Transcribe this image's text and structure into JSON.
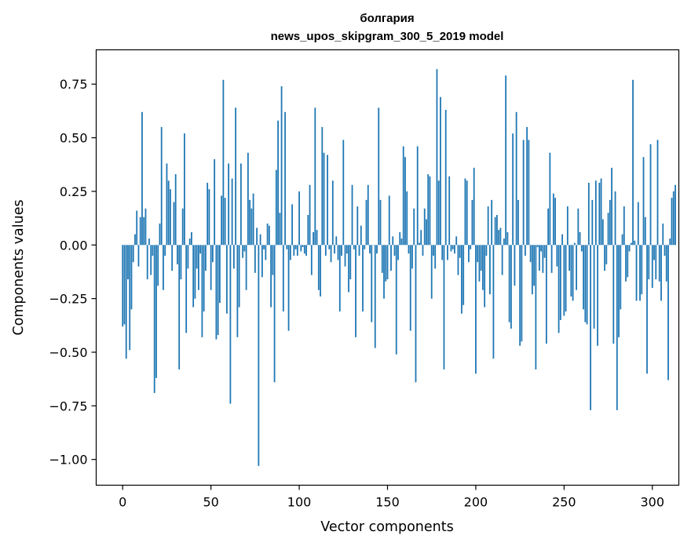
{
  "chart_data": {
    "type": "bar",
    "title": "болгария",
    "subtitle": "news_upos_skipgram_300_5_2019 model",
    "xlabel": "Vector components",
    "ylabel": "Components values",
    "xlim": [
      -15,
      315
    ],
    "ylim": [
      -1.12,
      0.91
    ],
    "xticks": [
      0,
      50,
      100,
      150,
      200,
      250,
      300
    ],
    "yticks": [
      -1.0,
      -0.75,
      -0.5,
      -0.25,
      0.0,
      0.25,
      0.5,
      0.75
    ],
    "xtick_labels": [
      "0",
      "50",
      "100",
      "150",
      "200",
      "250",
      "300"
    ],
    "ytick_labels": [
      "−1.00",
      "−0.75",
      "−0.50",
      "−0.25",
      "0.00",
      "0.25",
      "0.50",
      "0.75"
    ],
    "bar_color": "#1f77b4",
    "grid": false,
    "values": [
      -0.38,
      -0.37,
      -0.53,
      -0.16,
      -0.49,
      -0.3,
      -0.08,
      0.05,
      0.16,
      -0.1,
      0.13,
      0.62,
      0.13,
      0.17,
      -0.16,
      0.03,
      -0.14,
      -0.05,
      -0.69,
      -0.62,
      -0.19,
      0.1,
      0.55,
      -0.21,
      -0.05,
      0.38,
      0.3,
      0.26,
      -0.12,
      0.2,
      0.33,
      -0.09,
      -0.58,
      -0.16,
      0.17,
      0.52,
      -0.41,
      -0.11,
      0.03,
      0.06,
      -0.29,
      -0.25,
      -0.11,
      -0.21,
      -0.04,
      -0.43,
      -0.31,
      -0.12,
      0.29,
      0.26,
      -0.21,
      -0.08,
      0.4,
      -0.44,
      -0.42,
      -0.27,
      0.23,
      0.77,
      0.22,
      -0.32,
      0.38,
      -0.74,
      0.31,
      -0.11,
      0.64,
      -0.43,
      -0.29,
      0.38,
      -0.06,
      -0.03,
      -0.21,
      0.43,
      0.21,
      0.17,
      0.24,
      -0.13,
      0.08,
      -1.03,
      0.05,
      -0.15,
      -0.02,
      -0.07,
      0.1,
      0.09,
      -0.29,
      -0.14,
      -0.64,
      0.35,
      0.58,
      0.15,
      0.74,
      -0.31,
      0.62,
      -0.02,
      -0.4,
      -0.07,
      0.19,
      -0.05,
      -0.02,
      -0.05,
      0.25,
      -0.03,
      -0.01,
      -0.04,
      -0.05,
      0.14,
      0.28,
      -0.14,
      0.06,
      0.64,
      0.07,
      -0.21,
      -0.24,
      0.55,
      0.43,
      -0.05,
      0.42,
      -0.02,
      -0.08,
      0.3,
      -0.04,
      0.04,
      -0.07,
      -0.31,
      -0.05,
      0.49,
      -0.1,
      -0.04,
      -0.22,
      -0.16,
      0.28,
      -0.02,
      -0.43,
      0.18,
      -0.05,
      0.09,
      -0.31,
      -0.02,
      0.21,
      0.28,
      -0.04,
      -0.36,
      0.0,
      -0.48,
      -0.04,
      0.64,
      0.21,
      -0.13,
      -0.25,
      -0.17,
      -0.16,
      0.23,
      -0.12,
      0.04,
      -0.05,
      -0.51,
      -0.07,
      0.06,
      0.03,
      0.46,
      0.41,
      0.25,
      -0.04,
      -0.4,
      -0.11,
      0.17,
      -0.64,
      0.46,
      0.01,
      0.07,
      -0.05,
      0.17,
      0.12,
      0.33,
      0.32,
      -0.25,
      -0.05,
      -0.11,
      0.82,
      0.3,
      0.69,
      -0.07,
      -0.58,
      0.63,
      -0.07,
      0.32,
      -0.03,
      -0.02,
      -0.04,
      0.04,
      -0.14,
      -0.06,
      -0.32,
      -0.28,
      0.31,
      0.3,
      -0.08,
      -0.02,
      0.21,
      0.36,
      -0.6,
      -0.08,
      -0.17,
      -0.12,
      -0.21,
      -0.29,
      -0.05,
      0.18,
      -0.23,
      0.21,
      -0.53,
      0.13,
      0.14,
      0.07,
      0.08,
      -0.14,
      0.03,
      0.79,
      0.06,
      -0.36,
      -0.39,
      0.52,
      -0.19,
      0.62,
      0.21,
      -0.47,
      -0.45,
      0.49,
      -0.05,
      0.55,
      0.49,
      -0.08,
      -0.23,
      -0.19,
      -0.58,
      -0.01,
      -0.12,
      -0.03,
      -0.13,
      -0.06,
      -0.46,
      0.17,
      0.43,
      -0.13,
      0.24,
      0.22,
      -0.1,
      -0.41,
      -0.35,
      0.05,
      -0.33,
      -0.31,
      0.18,
      -0.12,
      -0.24,
      -0.26,
      0.01,
      -0.21,
      0.17,
      0.06,
      -0.03,
      -0.3,
      -0.36,
      -0.37,
      0.29,
      -0.77,
      0.21,
      -0.39,
      0.3,
      -0.47,
      0.29,
      0.31,
      0.12,
      -0.12,
      -0.09,
      0.15,
      0.21,
      0.36,
      -0.46,
      0.25,
      -0.77,
      -0.43,
      -0.3,
      0.05,
      0.18,
      -0.17,
      -0.15,
      -0.03,
      0.01,
      0.77,
      0.02,
      -0.26,
      0.2,
      -0.26,
      -0.23,
      0.41,
      0.13,
      -0.6,
      -0.16,
      0.47,
      -0.2,
      -0.07,
      -0.16,
      0.49,
      -0.17,
      -0.26,
      0.1,
      -0.05,
      -0.17,
      -0.63,
      0.03,
      0.22,
      0.25,
      0.28
    ]
  }
}
